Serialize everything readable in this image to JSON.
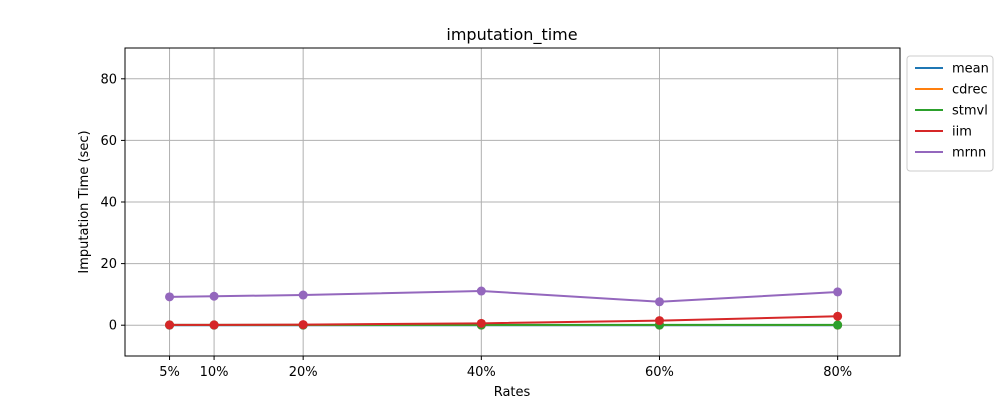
{
  "chart_data": {
    "type": "line",
    "title": "imputation_time",
    "xlabel": "Rates",
    "ylabel": "Imputation Time (sec)",
    "x": [
      5,
      10,
      20,
      40,
      60,
      80
    ],
    "x_tick_labels": [
      "5%",
      "10%",
      "20%",
      "40%",
      "60%",
      "80%"
    ],
    "xlim": [
      0,
      87
    ],
    "ylim": [
      -10,
      90
    ],
    "y_ticks": [
      0,
      20,
      40,
      60,
      80
    ],
    "grid": true,
    "legend_position": "outside-top-right",
    "markers": true,
    "series": [
      {
        "name": "mean",
        "color": "#1f77b4",
        "values": [
          0.0,
          0.0,
          0.0,
          0.0,
          0.0,
          0.0
        ]
      },
      {
        "name": "cdrec",
        "color": "#ff7f0e",
        "values": [
          0.05,
          0.05,
          0.05,
          0.05,
          0.05,
          0.05
        ]
      },
      {
        "name": "stmvl",
        "color": "#2ca02c",
        "values": [
          0.1,
          0.1,
          0.1,
          0.1,
          0.1,
          0.1
        ]
      },
      {
        "name": "iim",
        "color": "#d62728",
        "values": [
          0.1,
          0.1,
          0.2,
          0.6,
          1.5,
          2.9
        ]
      },
      {
        "name": "mrnn",
        "color": "#9467bd",
        "values": [
          9.2,
          9.4,
          9.8,
          11.1,
          7.6,
          10.8
        ]
      }
    ]
  }
}
